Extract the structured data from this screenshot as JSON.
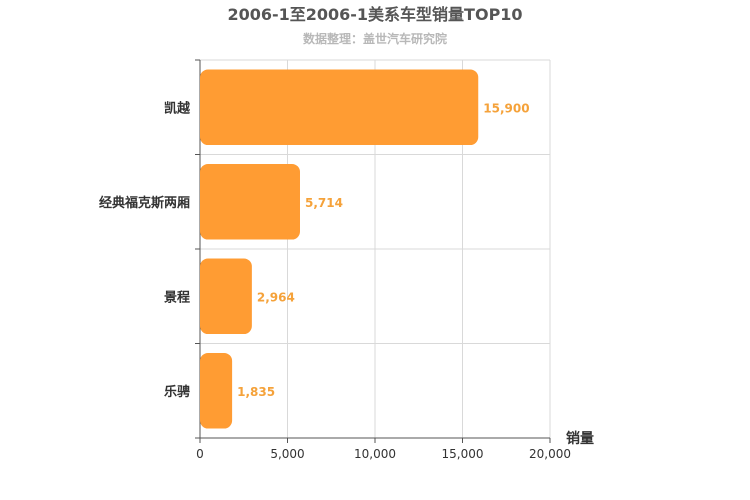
{
  "chart_data": {
    "type": "bar",
    "orientation": "horizontal",
    "title": "2006-1至2006-1美系车型销量TOP10",
    "subtitle": "数据整理：盖世汽车研究院",
    "xlabel": "销量",
    "ylabel": "",
    "categories": [
      "凯越",
      "经典福克斯两厢",
      "景程",
      "乐骋"
    ],
    "values": [
      15900,
      5714,
      2964,
      1835
    ],
    "value_labels": [
      "15,900",
      "5,714",
      "2,964",
      "1,835"
    ],
    "xlim": [
      0,
      20000
    ],
    "xticks": [
      0,
      5000,
      10000,
      15000,
      20000
    ],
    "xtick_labels": [
      "0",
      "5,000",
      "10,000",
      "15,000",
      "20,000"
    ],
    "grid": true,
    "legend": "none",
    "bar_color": "#ff9c33",
    "label_color": "#f5a23a"
  }
}
